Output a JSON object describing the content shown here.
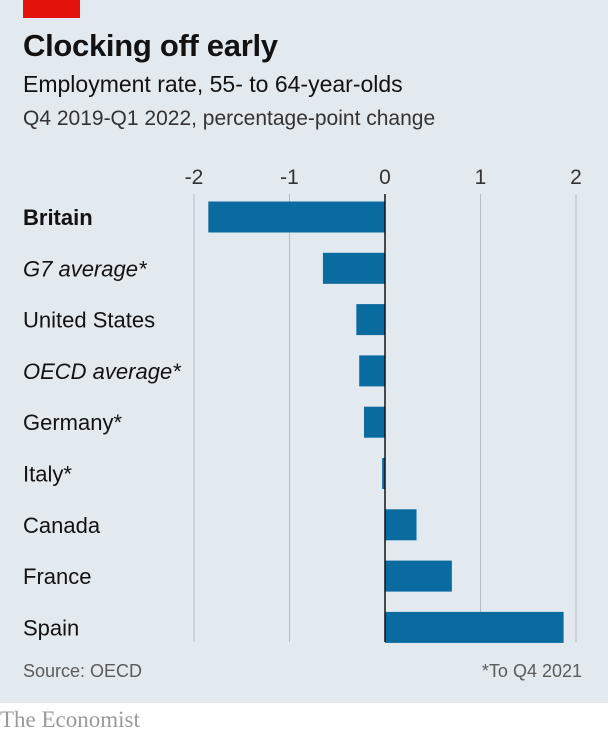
{
  "header": {
    "title": "Clocking off early",
    "subtitle": "Employment rate, 55- to 64-year-olds",
    "subsubtitle": "Q4 2019-Q1 2022, percentage-point change"
  },
  "footer": {
    "source": "Source: OECD",
    "footnote": "*To Q4 2021",
    "brand": "The Economist"
  },
  "colors": {
    "bar": "#0a6ba0",
    "background": "#e2e9ef",
    "accent": "#e3120b",
    "grid": "#b4bec6"
  },
  "chart_data": {
    "type": "bar",
    "orientation": "horizontal",
    "categories": [
      "Britain",
      "G7 average*",
      "United States",
      "OECD average*",
      "Germany*",
      "Italy*",
      "Canada",
      "France",
      "Spain"
    ],
    "category_styles": [
      "bold",
      "italic",
      "normal",
      "italic",
      "normal",
      "normal",
      "normal",
      "normal",
      "normal"
    ],
    "values": [
      -1.85,
      -0.65,
      -0.3,
      -0.27,
      -0.22,
      -0.03,
      0.33,
      0.7,
      1.87
    ],
    "xlim": [
      -2,
      2
    ],
    "xticks": [
      -2,
      -1,
      0,
      1,
      2
    ],
    "xtick_labels": [
      "-2",
      "-1",
      "0",
      "1",
      "2"
    ],
    "axis_position": "top",
    "grid": true
  }
}
